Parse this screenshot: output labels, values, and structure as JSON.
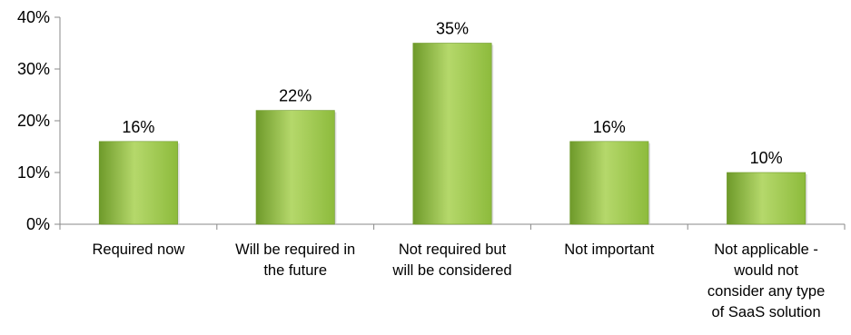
{
  "chart_data": {
    "type": "bar",
    "categories": [
      "Required now",
      "Will be required in the future",
      "Not required but will be considered",
      "Not important",
      "Not applicable - would not consider any type of SaaS solution"
    ],
    "category_lines": [
      [
        "Required now"
      ],
      [
        "Will be required in",
        "the future"
      ],
      [
        "Not required but",
        "will be considered"
      ],
      [
        "Not important"
      ],
      [
        "Not applicable -",
        "would not",
        "consider any type",
        "of SaaS solution"
      ]
    ],
    "values": [
      16,
      22,
      35,
      16,
      10
    ],
    "data_labels": [
      "16%",
      "22%",
      "35%",
      "16%",
      "10%"
    ],
    "yticks": [
      "0%",
      "10%",
      "20%",
      "30%",
      "40%"
    ],
    "ylim": [
      0,
      40
    ],
    "grid": false,
    "legend": "none",
    "bar_color": "#8dbb3c",
    "bar_color_light": "#b5d86b",
    "bar_color_dark": "#6e9a2a"
  }
}
